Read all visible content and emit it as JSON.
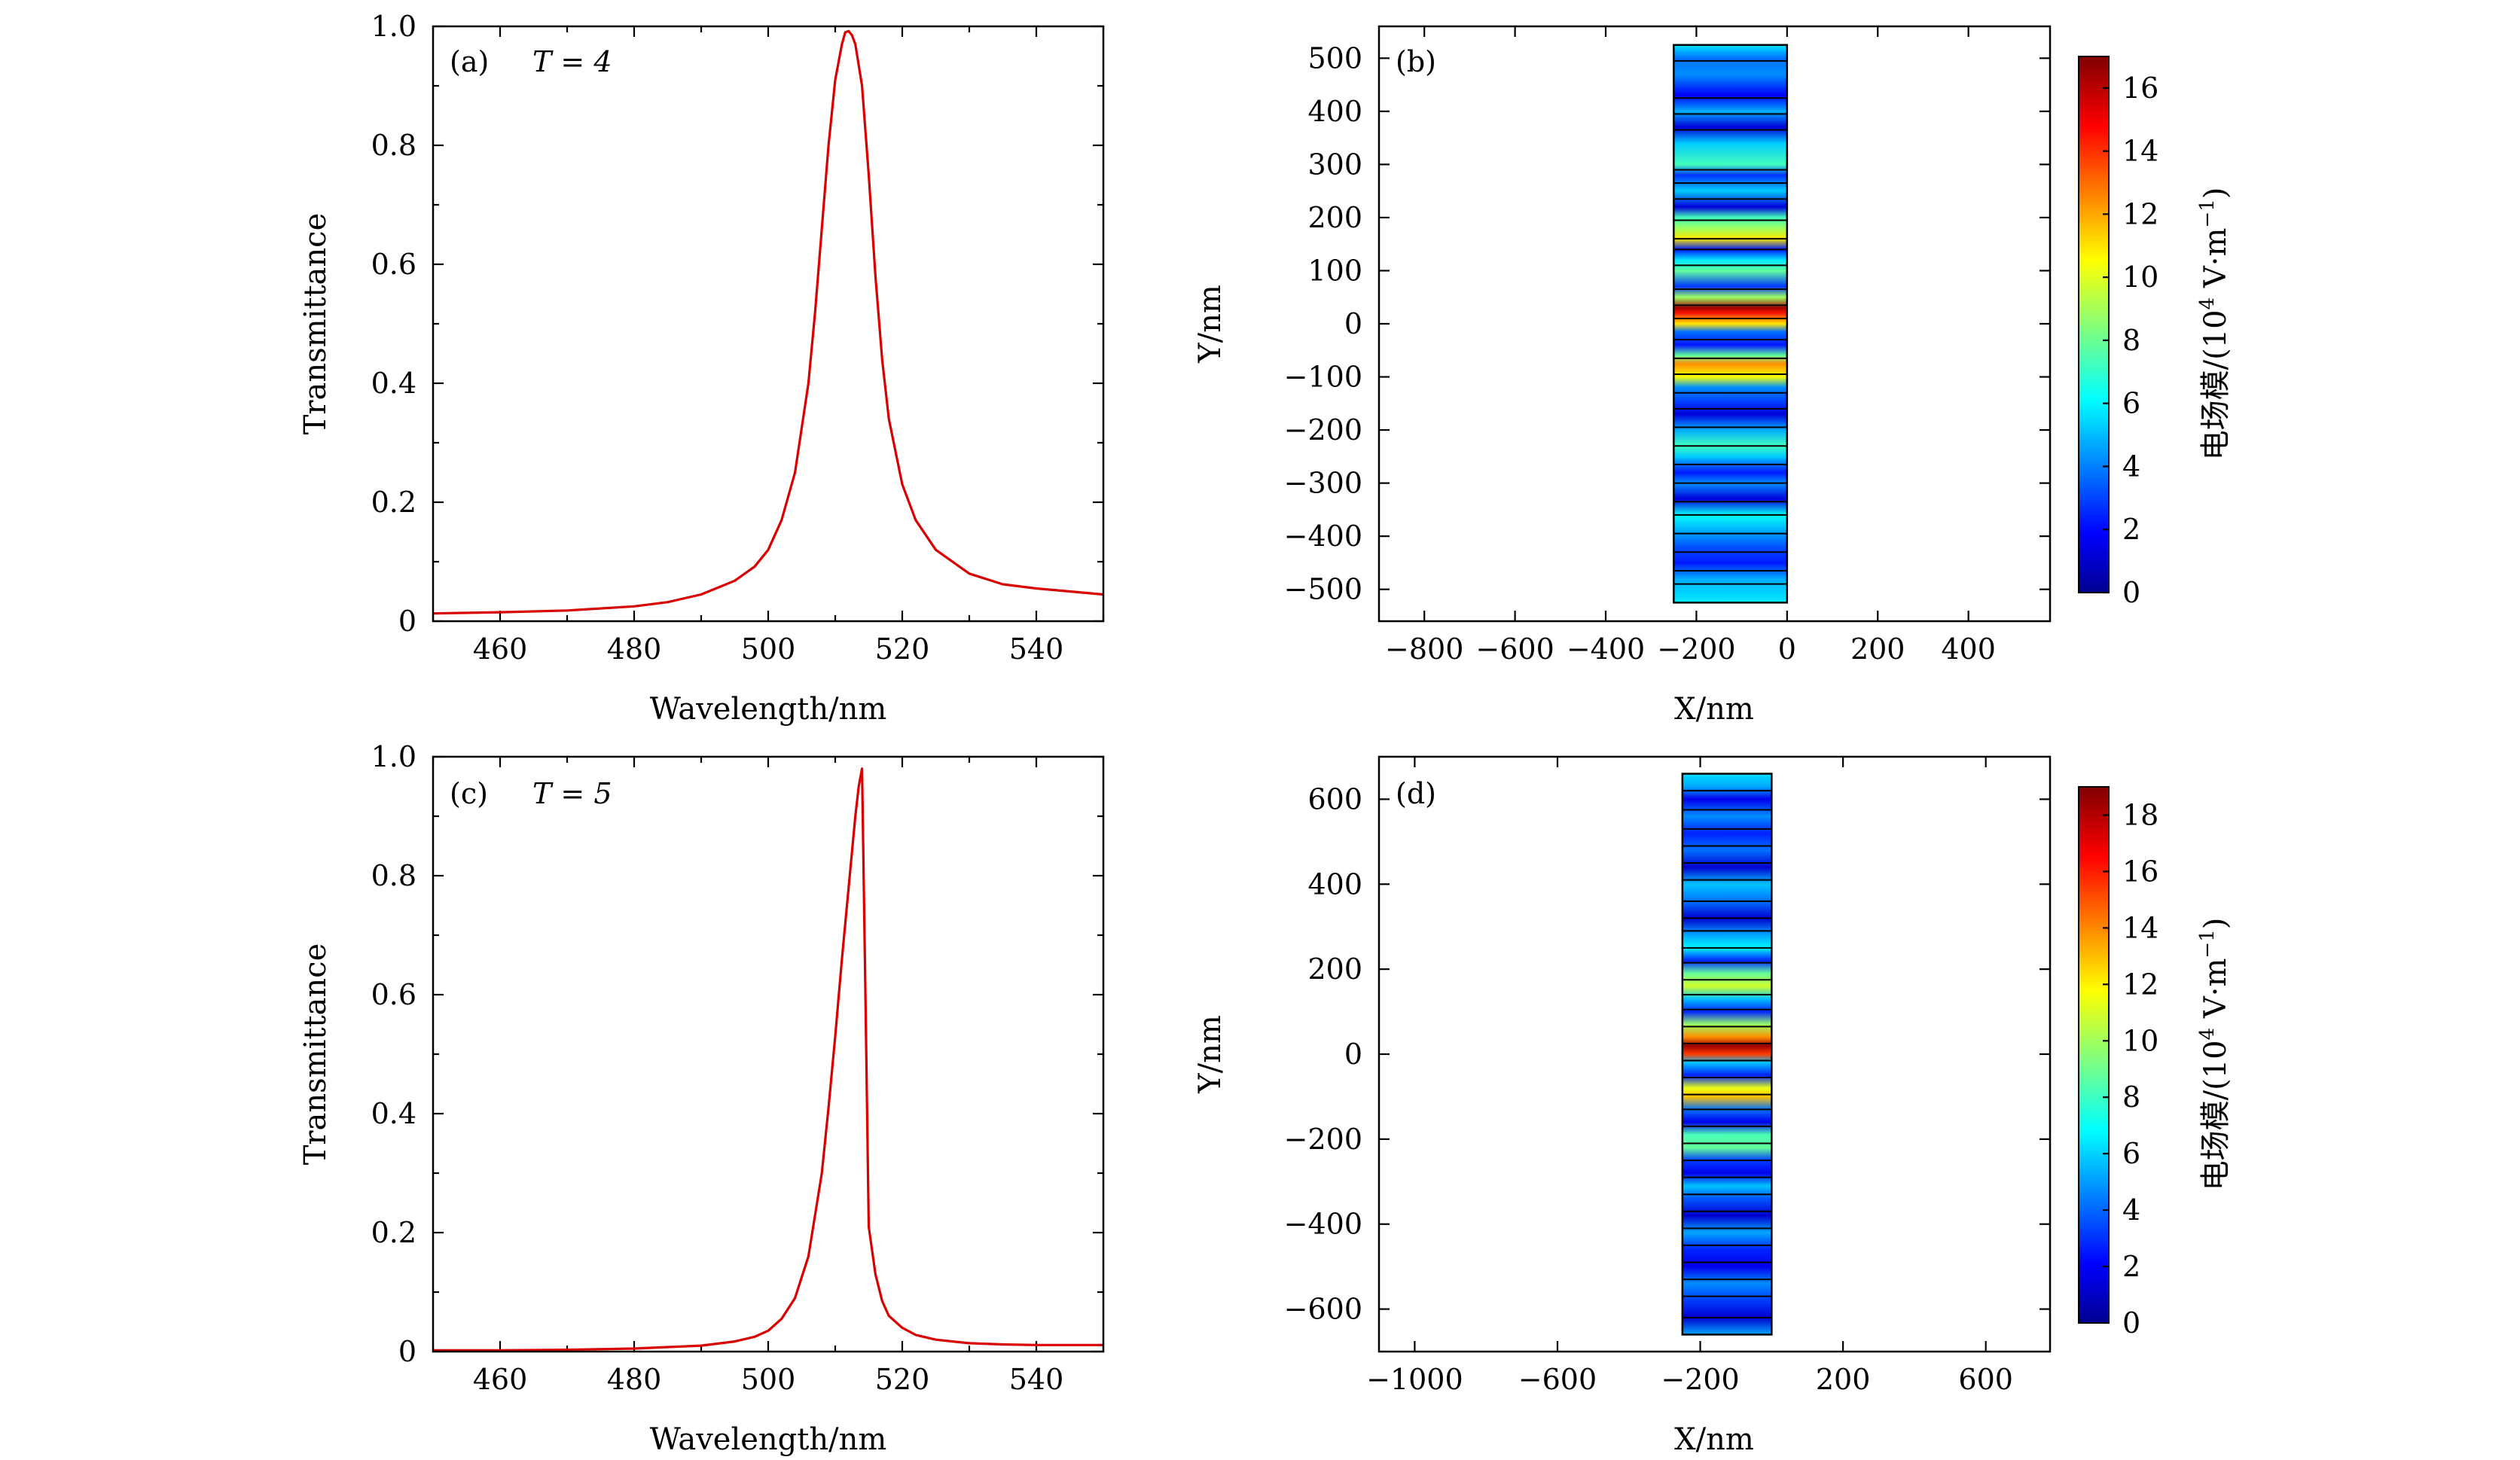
{
  "chart_data": [
    {
      "id": "a",
      "type": "line",
      "panel_label": "(a)",
      "annotation": "T = 4",
      "xlabel": "Wavelength/nm",
      "ylabel": "Transmittance",
      "xlim": [
        450,
        550
      ],
      "ylim": [
        0,
        1.0
      ],
      "xticks": [
        460,
        480,
        500,
        520,
        540
      ],
      "yticks": [
        0,
        0.2,
        0.4,
        0.6,
        0.8,
        1.0
      ],
      "ytick_labels": [
        "0",
        "0.2",
        "0.4",
        "0.6",
        "0.8",
        "1.0"
      ],
      "series": [
        {
          "name": "Transmittance",
          "color": "#d80000",
          "x": [
            450,
            460,
            470,
            480,
            485,
            490,
            495,
            498,
            500,
            502,
            504,
            506,
            507,
            508,
            509,
            510,
            511,
            511.5,
            512,
            512.5,
            513,
            514,
            515,
            516,
            517,
            518,
            520,
            522,
            525,
            530,
            535,
            540,
            545,
            550
          ],
          "y": [
            0.013,
            0.015,
            0.018,
            0.025,
            0.032,
            0.045,
            0.068,
            0.092,
            0.12,
            0.17,
            0.25,
            0.4,
            0.52,
            0.66,
            0.8,
            0.91,
            0.97,
            0.99,
            0.992,
            0.985,
            0.97,
            0.9,
            0.75,
            0.58,
            0.44,
            0.34,
            0.23,
            0.17,
            0.12,
            0.08,
            0.062,
            0.055,
            0.05,
            0.045
          ]
        }
      ]
    },
    {
      "id": "b",
      "type": "heatmap",
      "panel_label": "(b)",
      "xlabel": "X/nm",
      "ylabel": "Y/nm",
      "xlim": [
        -900,
        580
      ],
      "ylim": [
        -560,
        560
      ],
      "xticks": [
        -800,
        -600,
        -400,
        -200,
        0,
        200,
        400
      ],
      "xtick_labels": [
        "−800",
        "−600",
        "−400",
        "−200",
        "0",
        "200",
        "400"
      ],
      "yticks": [
        -500,
        -400,
        -300,
        -200,
        -100,
        0,
        100,
        200,
        300,
        400,
        500
      ],
      "ytick_labels": [
        "−500",
        "−400",
        "−300",
        "−200",
        "−100",
        "0",
        "100",
        "200",
        "300",
        "400",
        "500"
      ],
      "structure": {
        "x_range": [
          -250,
          0
        ],
        "y_range": [
          -525,
          525
        ]
      },
      "layer_boundaries_y": [
        495,
        425,
        395,
        365,
        290,
        265,
        235,
        195,
        160,
        140,
        110,
        65,
        35,
        10,
        -30,
        -65,
        -95,
        -130,
        -160,
        -195,
        -230,
        -265,
        -300,
        -335,
        -360,
        -395,
        -430,
        -465,
        -490
      ],
      "field_profile": {
        "y": [
          525,
          500,
          470,
          430,
          400,
          370,
          340,
          300,
          280,
          250,
          220,
          200,
          180,
          160,
          140,
          120,
          100,
          70,
          50,
          30,
          20,
          0,
          -15,
          -40,
          -60,
          -75,
          -100,
          -120,
          -150,
          -170,
          -200,
          -230,
          -250,
          -280,
          -300,
          -330,
          -360,
          -390,
          -420,
          -450,
          -480,
          -500,
          -525
        ],
        "value": [
          6.0,
          4.0,
          4.5,
          2.0,
          5.0,
          1.5,
          5.5,
          7.5,
          3.0,
          5.5,
          1.5,
          7.5,
          9.0,
          11.0,
          2.5,
          6.0,
          8.0,
          3.0,
          9.0,
          16.5,
          14.5,
          11.0,
          4.0,
          2.5,
          8.0,
          12.5,
          10.5,
          4.5,
          3.0,
          1.5,
          5.0,
          7.5,
          5.5,
          2.5,
          4.5,
          1.5,
          6.5,
          5.0,
          3.5,
          2.5,
          5.0,
          5.5,
          6.0
        ]
      },
      "colorbar": {
        "title": "电场模/(10⁴ V·m⁻¹)",
        "title_main": "电场模/(10",
        "title_sup": "4",
        "title_unit": " V·m",
        "title_sup2": "−1",
        "title_end": ")",
        "min": 0,
        "max": 17,
        "ticks": [
          0,
          2,
          4,
          6,
          8,
          10,
          12,
          14,
          16
        ]
      }
    },
    {
      "id": "c",
      "type": "line",
      "panel_label": "(c)",
      "annotation": "T = 5",
      "xlabel": "Wavelength/nm",
      "ylabel": "Transmittance",
      "xlim": [
        450,
        550
      ],
      "ylim": [
        0,
        1.0
      ],
      "xticks": [
        460,
        480,
        500,
        520,
        540
      ],
      "yticks": [
        0,
        0.2,
        0.4,
        0.6,
        0.8,
        1.0
      ],
      "ytick_labels": [
        "0",
        "0.2",
        "0.4",
        "0.6",
        "0.8",
        "1.0"
      ],
      "series": [
        {
          "name": "Transmittance",
          "color": "#d80000",
          "x": [
            450,
            460,
            470,
            480,
            490,
            495,
            498,
            500,
            502,
            504,
            506,
            508,
            509,
            510,
            511,
            512,
            513,
            513.5,
            514,
            514.5,
            515,
            516,
            517,
            518,
            520,
            522,
            525,
            530,
            535,
            540,
            545,
            550
          ],
          "y": [
            0.002,
            0.002,
            0.003,
            0.005,
            0.01,
            0.017,
            0.025,
            0.035,
            0.055,
            0.09,
            0.16,
            0.3,
            0.41,
            0.53,
            0.66,
            0.78,
            0.9,
            0.95,
            0.98,
            0.6,
            0.21,
            0.13,
            0.085,
            0.06,
            0.04,
            0.028,
            0.02,
            0.014,
            0.012,
            0.011,
            0.011,
            0.011
          ]
        }
      ]
    },
    {
      "id": "d",
      "type": "heatmap",
      "panel_label": "(d)",
      "xlabel": "X/nm",
      "ylabel": "Y/nm",
      "xlim": [
        -1100,
        780
      ],
      "ylim": [
        -700,
        700
      ],
      "xticks": [
        -1000,
        -600,
        -200,
        200,
        600
      ],
      "xtick_labels": [
        "−1000",
        "−600",
        "−200",
        "200",
        "600"
      ],
      "yticks": [
        -600,
        -400,
        -200,
        0,
        200,
        400,
        600
      ],
      "ytick_labels": [
        "−600",
        "−400",
        "−200",
        "0",
        "200",
        "400",
        "600"
      ],
      "structure": {
        "x_range": [
          -250,
          0
        ],
        "y_range": [
          -660,
          660
        ]
      },
      "layer_boundaries_y": [
        620,
        575,
        530,
        490,
        450,
        410,
        360,
        320,
        290,
        250,
        215,
        175,
        140,
        105,
        65,
        25,
        -15,
        -55,
        -95,
        -130,
        -170,
        -210,
        -250,
        -290,
        -330,
        -370,
        -410,
        -450,
        -490,
        -530,
        -570,
        -620
      ],
      "field_profile": {
        "y": [
          660,
          630,
          600,
          560,
          520,
          480,
          440,
          400,
          360,
          320,
          280,
          250,
          220,
          190,
          160,
          130,
          100,
          70,
          40,
          20,
          0,
          -20,
          -50,
          -80,
          -100,
          -130,
          -160,
          -190,
          -220,
          -250,
          -280,
          -310,
          -340,
          -380,
          -420,
          -460,
          -500,
          -540,
          -580,
          -620,
          -660
        ],
        "value": [
          6.5,
          5.5,
          2.0,
          5.0,
          3.0,
          4.5,
          1.5,
          6.0,
          4.5,
          1.5,
          5.5,
          7.0,
          3.0,
          9.0,
          11.0,
          6.0,
          3.0,
          10.0,
          14.0,
          18.5,
          15.5,
          6.0,
          3.0,
          11.5,
          13.0,
          4.5,
          2.0,
          8.5,
          9.0,
          3.5,
          2.0,
          6.0,
          4.0,
          1.5,
          5.5,
          3.0,
          2.0,
          5.0,
          3.5,
          1.5,
          5.5
        ]
      },
      "colorbar": {
        "title": "电场模/(10⁴ V·m⁻¹)",
        "title_main": "电场模/(10",
        "title_sup": "4",
        "title_unit": " V·m",
        "title_sup2": "−1",
        "title_end": ")",
        "min": 0,
        "max": 19,
        "ticks": [
          0,
          2,
          4,
          6,
          8,
          10,
          12,
          14,
          16,
          18
        ]
      }
    }
  ]
}
